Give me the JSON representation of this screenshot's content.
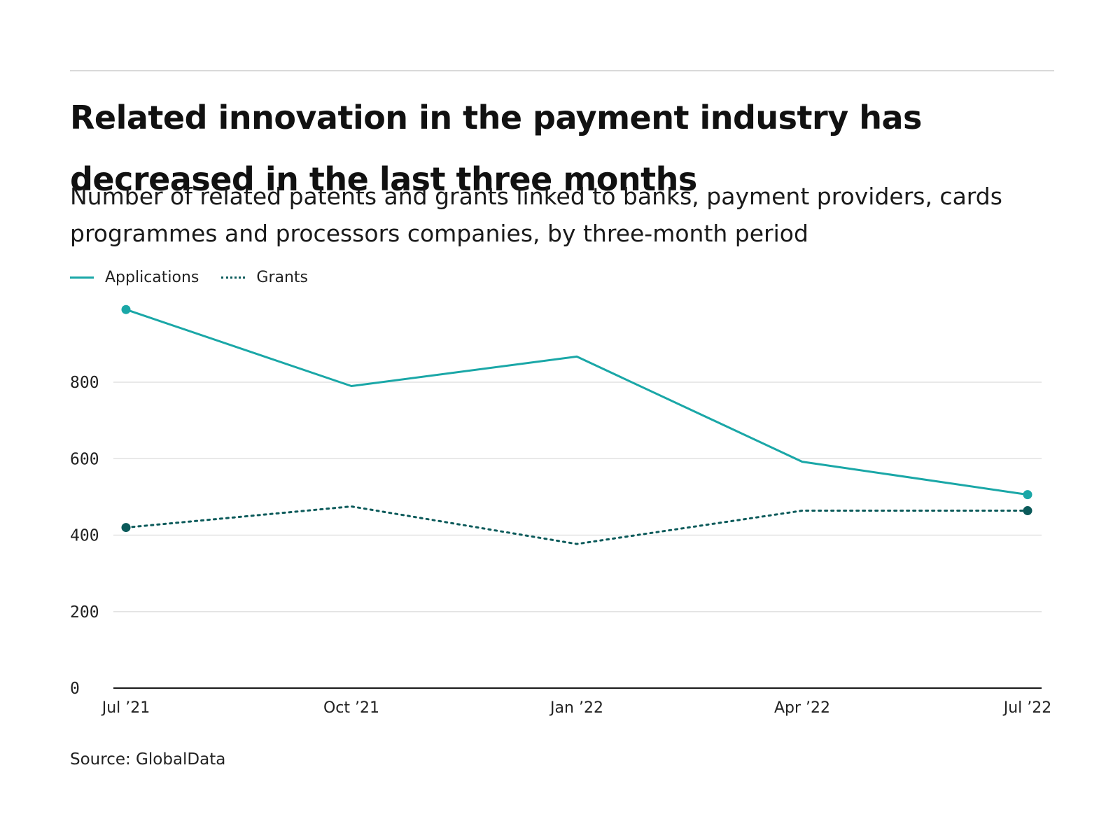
{
  "header": {
    "title": "Related innovation in the payment industry has decreased in the last three months",
    "subtitle": "Number of related patents and grants linked to banks, payment providers, cards programmes and processors companies, by three-month period"
  },
  "legend": {
    "applications": "Applications",
    "grants": "Grants"
  },
  "footer": {
    "source": "Source: GlobalData"
  },
  "chart_data": {
    "type": "line",
    "title": "Related innovation in the payment industry has decreased in the last three months",
    "subtitle": "Number of related patents and grants linked to banks, payment providers, cards programmes and processors companies, by three-month period",
    "categories": [
      "Jul ’21",
      "Oct ’21",
      "Jan ’22",
      "Apr ’22",
      "Jul ’22"
    ],
    "series": [
      {
        "name": "Applications",
        "values": [
          990,
          790,
          867,
          592,
          506
        ],
        "color": "#1aa7a7",
        "line_style": "solid"
      },
      {
        "name": "Grants",
        "values": [
          420,
          475,
          377,
          464,
          464
        ],
        "color": "#0b5a5a",
        "line_style": "dotted"
      }
    ],
    "y_ticks": [
      0,
      200,
      400,
      600,
      800
    ],
    "ylim": [
      0,
      1000
    ],
    "xlabel": "",
    "ylabel": "",
    "grid": true,
    "legend_position": "top-left"
  }
}
